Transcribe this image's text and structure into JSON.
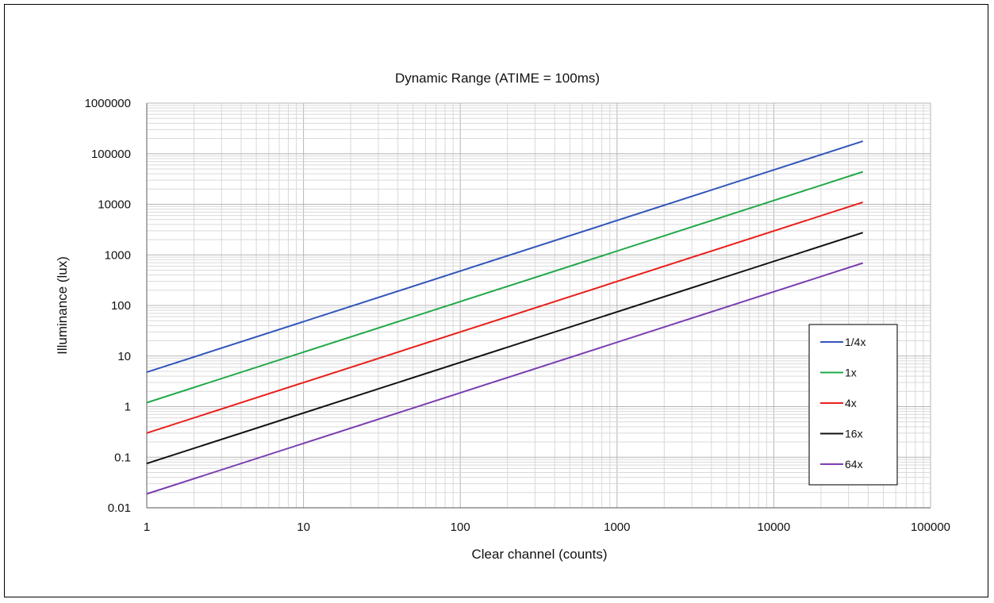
{
  "chart_data": {
    "type": "line",
    "title": "Dynamic Range (ATIME = 100ms)",
    "xlabel": "Clear channel (counts)",
    "ylabel": "Illuminance (lux)",
    "x_scale": "log",
    "y_scale": "log",
    "xlim": [
      1,
      100000
    ],
    "ylim": [
      0.01,
      1000000
    ],
    "x_ticks": [
      "1",
      "10",
      "100",
      "1000",
      "10000",
      "100000"
    ],
    "y_ticks": [
      "0.01",
      "0.1",
      "1",
      "10",
      "100",
      "1000",
      "10000",
      "100000",
      "1000000"
    ],
    "grid": true,
    "legend_position": "right",
    "series": [
      {
        "name": "1/4x",
        "color": "#3355bb",
        "x": [
          1,
          37000
        ],
        "y": [
          4.8,
          177000
        ]
      },
      {
        "name": "1x",
        "color": "#22a84a",
        "x": [
          1,
          37000
        ],
        "y": [
          1.2,
          44000
        ]
      },
      {
        "name": "4x",
        "color": "#e8201c",
        "x": [
          1,
          37000
        ],
        "y": [
          0.3,
          11000
        ]
      },
      {
        "name": "16x",
        "color": "#111111",
        "x": [
          1,
          37000
        ],
        "y": [
          0.075,
          2750
        ]
      },
      {
        "name": "64x",
        "color": "#7a3fb0",
        "x": [
          1,
          37000
        ],
        "y": [
          0.0188,
          690
        ]
      }
    ]
  }
}
